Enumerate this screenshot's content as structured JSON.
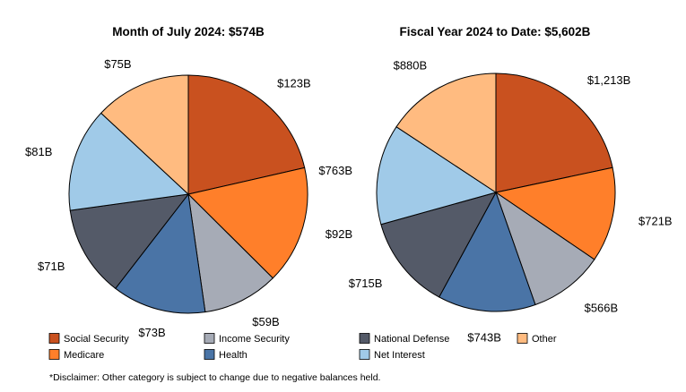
{
  "chart_data": [
    {
      "type": "pie",
      "title": "Month of July 2024: $574B",
      "categories": [
        "Social Security",
        "Medicare",
        "Income Security",
        "Health",
        "National Defense",
        "Net Interest",
        "Other"
      ],
      "values": [
        123,
        92,
        59,
        73,
        71,
        81,
        75
      ],
      "value_labels": [
        "$123B",
        "$92B",
        "$59B",
        "$73B",
        "$71B",
        "$81B",
        "$75B"
      ],
      "start_angle_deg": 0,
      "direction": "clockwise"
    },
    {
      "type": "pie",
      "title": "Fiscal Year 2024 to Date: $5,602B",
      "categories": [
        "Social Security",
        "Medicare",
        "Income Security",
        "Health",
        "National Defense",
        "Net Interest",
        "Other"
      ],
      "values": [
        1213,
        721,
        566,
        743,
        715,
        763,
        880
      ],
      "value_labels": [
        "$1,213B",
        "$721B",
        "$566B",
        "$743B",
        "$715B",
        "$763B",
        "$880B"
      ],
      "start_angle_deg": 0,
      "direction": "clockwise"
    }
  ],
  "legend": {
    "items": [
      {
        "label": "Social Security",
        "color": "#C9511F"
      },
      {
        "label": "Medicare",
        "color": "#FF7F2A"
      },
      {
        "label": "Income Security",
        "color": "#A6ABB6"
      },
      {
        "label": "Health",
        "color": "#4A74A6"
      },
      {
        "label": "National Defense",
        "color": "#545A68"
      },
      {
        "label": "Net Interest",
        "color": "#A0CAE8"
      },
      {
        "label": "Other",
        "color": "#FFBB80"
      }
    ]
  },
  "disclaimer": "*Disclaimer: Other category is subject to change due to negative balances held."
}
